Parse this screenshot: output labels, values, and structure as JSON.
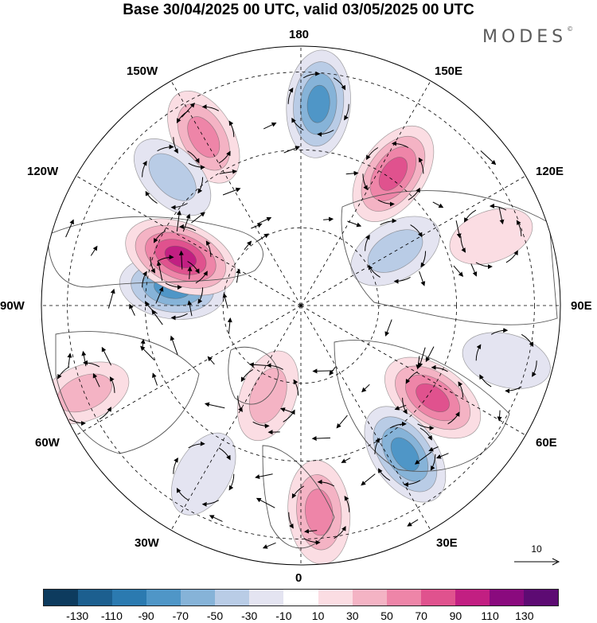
{
  "title": "Base 30/04/2025 00 UTC, valid 03/05/2025 00 UTC",
  "logo": "MODES",
  "logo_mark": "©",
  "longitude_labels": {
    "top": "180",
    "bottom": "0",
    "left": "90W",
    "right": "90E",
    "upper_left_inner": "150W",
    "upper_left_outer": "120W",
    "upper_right_inner": "150E",
    "upper_right_outer": "120E",
    "lower_left_outer": "60W",
    "lower_left_inner": "30W",
    "lower_right_outer": "60E",
    "lower_right_inner": "30E"
  },
  "reference_vector": {
    "label": "10"
  },
  "colorbar": {
    "ticks": [
      "-130",
      "-110",
      "-90",
      "-70",
      "-50",
      "-30",
      "-10",
      "10",
      "30",
      "50",
      "70",
      "90",
      "110",
      "130"
    ],
    "colors": [
      "#0d3b5e",
      "#1c5f8f",
      "#2b7ab0",
      "#4f96c7",
      "#86b3d8",
      "#b9cce6",
      "#e4e4f1",
      "#ffffff",
      "#fbdde3",
      "#f4b3c4",
      "#ee85a8",
      "#e0528e",
      "#c21f82",
      "#8a0a7e",
      "#5d0b73"
    ]
  },
  "anomaly_cells": [
    {
      "lon": 175,
      "r": 0.78,
      "value": -85
    },
    {
      "lon": -150,
      "r": 0.75,
      "value": 65
    },
    {
      "lon": 145,
      "r": 0.62,
      "value": 85
    },
    {
      "lon": 120,
      "r": 0.42,
      "value": -55
    },
    {
      "lon": 110,
      "r": 0.78,
      "value": 25
    },
    {
      "lon": 75,
      "r": 0.82,
      "value": -35
    },
    {
      "lon": 55,
      "r": 0.62,
      "value": 85
    },
    {
      "lon": 35,
      "r": 0.7,
      "value": -85
    },
    {
      "lon": 5,
      "r": 0.8,
      "value": 75
    },
    {
      "lon": -30,
      "r": 0.75,
      "value": -35
    },
    {
      "lon": -20,
      "r": 0.37,
      "value": 45
    },
    {
      "lon": -68,
      "r": 0.9,
      "value": 45
    },
    {
      "lon": -98,
      "r": 0.5,
      "value": -80
    },
    {
      "lon": -112,
      "r": 0.5,
      "value": 105
    },
    {
      "lon": -135,
      "r": 0.7,
      "value": -45
    }
  ]
}
